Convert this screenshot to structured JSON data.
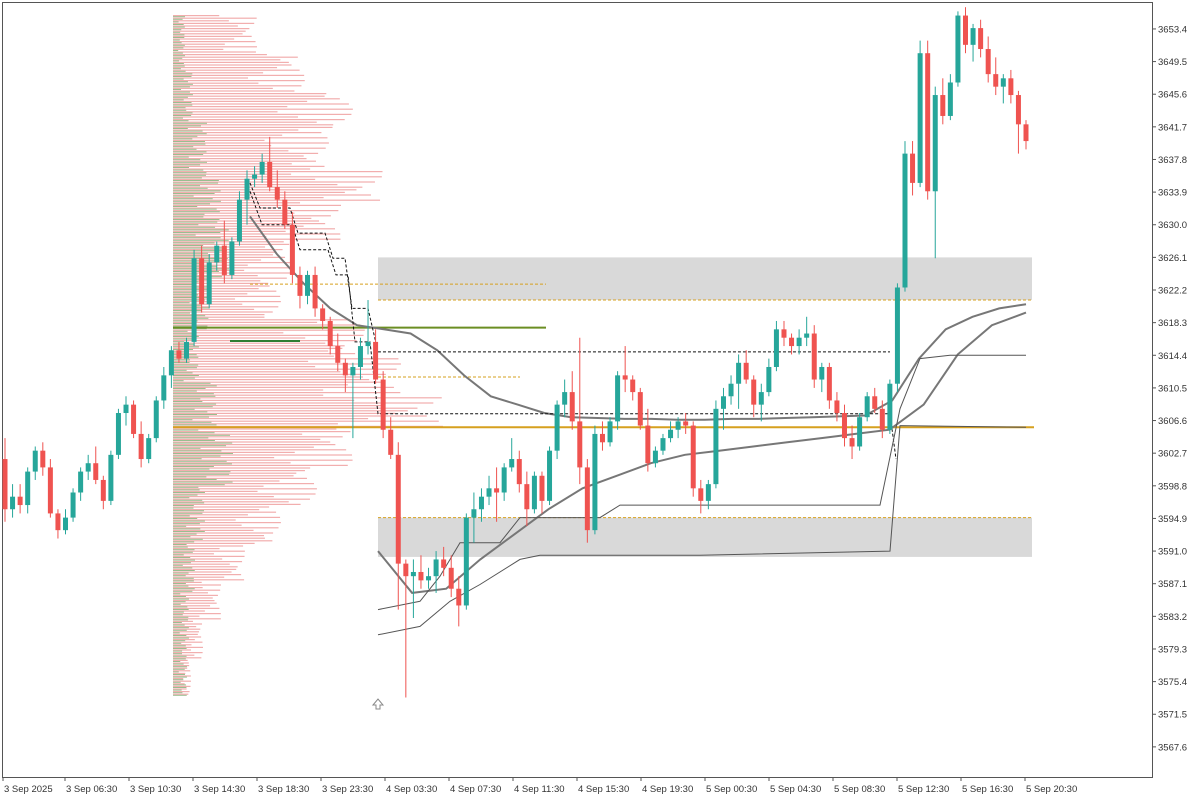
{
  "toolbar": {
    "icons": [
      "object-list-icon",
      "indicator-list-icon"
    ]
  },
  "colors": {
    "bull": "#26a69a",
    "bear": "#ef5350",
    "zone": "#d9d9d9",
    "avg_line": "#777777",
    "band_line": "#555555",
    "poc_line": "#d6a01f",
    "level_line": "#6b8e23",
    "profile_bull": "#7fae74",
    "profile_bear": "#f0a0a0"
  },
  "chart_data": {
    "type": "candlestick",
    "symbol_period": "",
    "y_ticks": [
      "3653.4",
      "3649.5",
      "3645.6",
      "3641.7",
      "3637.8",
      "3633.9",
      "3630.0",
      "3626.1",
      "3622.2",
      "3618.3",
      "3614.4",
      "3610.5",
      "3606.6",
      "3602.7",
      "3598.8",
      "3594.9",
      "3591.0",
      "3587.1",
      "3583.2",
      "3579.3",
      "3575.4",
      "3571.5",
      "3567.6"
    ],
    "x_ticks": [
      "3 Sep 2025",
      "3 Sep 06:30",
      "3 Sep 10:30",
      "3 Sep 14:30",
      "3 Sep 18:30",
      "3 Sep 23:30",
      "4 Sep 03:30",
      "4 Sep 07:30",
      "4 Sep 11:30",
      "4 Sep 15:30",
      "4 Sep 19:30",
      "5 Sep 00:30",
      "5 Sep 04:30",
      "5 Sep 08:30",
      "5 Sep 12:30",
      "5 Sep 16:30",
      "5 Sep 20:30"
    ],
    "ylim": [
      3564.0,
      3656.5
    ],
    "candles_ohlc": [
      [
        3602.0,
        3604.5,
        3594.5,
        3596.0
      ],
      [
        3596.0,
        3599.0,
        3595.0,
        3597.5
      ],
      [
        3597.5,
        3599.0,
        3595.5,
        3596.5
      ],
      [
        3596.5,
        3601.0,
        3595.5,
        3600.5
      ],
      [
        3600.5,
        3603.5,
        3599.5,
        3603.0
      ],
      [
        3603.0,
        3604.0,
        3600.0,
        3601.0
      ],
      [
        3601.0,
        3602.0,
        3595.0,
        3595.5
      ],
      [
        3595.5,
        3596.0,
        3592.5,
        3593.5
      ],
      [
        3593.5,
        3596.0,
        3593.0,
        3595.0
      ],
      [
        3595.0,
        3598.5,
        3594.5,
        3598.0
      ],
      [
        3598.0,
        3601.0,
        3597.0,
        3600.5
      ],
      [
        3600.5,
        3602.5,
        3599.5,
        3601.5
      ],
      [
        3601.5,
        3603.5,
        3599.0,
        3599.5
      ],
      [
        3599.5,
        3600.0,
        3596.0,
        3597.0
      ],
      [
        3597.0,
        3603.0,
        3596.5,
        3602.5
      ],
      [
        3602.5,
        3608.0,
        3602.0,
        3607.5
      ],
      [
        3607.5,
        3609.5,
        3606.0,
        3608.5
      ],
      [
        3608.5,
        3609.0,
        3604.5,
        3605.0
      ],
      [
        3605.0,
        3606.5,
        3601.0,
        3602.0
      ],
      [
        3602.0,
        3605.0,
        3601.5,
        3604.5
      ],
      [
        3604.5,
        3609.5,
        3604.0,
        3609.0
      ],
      [
        3609.0,
        3613.0,
        3608.0,
        3612.0
      ],
      [
        3612.0,
        3615.5,
        3610.5,
        3615.0
      ],
      [
        3615.0,
        3616.0,
        3613.5,
        3614.0
      ],
      [
        3614.0,
        3616.5,
        3613.5,
        3616.0
      ],
      [
        3616.0,
        3627.0,
        3615.5,
        3626.0
      ],
      [
        3626.0,
        3627.5,
        3619.5,
        3620.5
      ],
      [
        3620.5,
        3626.5,
        3620.0,
        3625.5
      ],
      [
        3625.5,
        3628.0,
        3624.5,
        3627.5
      ],
      [
        3627.5,
        3630.5,
        3623.0,
        3624.0
      ],
      [
        3624.0,
        3628.5,
        3623.5,
        3628.0
      ],
      [
        3628.0,
        3634.0,
        3627.5,
        3633.0
      ],
      [
        3633.0,
        3636.5,
        3630.0,
        3635.5
      ],
      [
        3635.5,
        3637.0,
        3634.5,
        3636.0
      ],
      [
        3636.0,
        3638.5,
        3635.0,
        3637.5
      ],
      [
        3637.5,
        3640.5,
        3634.0,
        3634.5
      ],
      [
        3634.5,
        3636.5,
        3632.0,
        3633.0
      ],
      [
        3633.0,
        3634.0,
        3629.5,
        3630.0
      ],
      [
        3630.0,
        3631.5,
        3623.0,
        3624.0
      ],
      [
        3624.0,
        3625.0,
        3620.0,
        3621.5
      ],
      [
        3621.5,
        3624.5,
        3620.5,
        3624.0
      ],
      [
        3624.0,
        3625.0,
        3619.0,
        3620.0
      ],
      [
        3620.0,
        3620.5,
        3617.5,
        3618.5
      ],
      [
        3618.5,
        3619.0,
        3614.5,
        3615.5
      ],
      [
        3615.5,
        3617.0,
        3612.5,
        3613.5
      ],
      [
        3613.5,
        3614.0,
        3610.0,
        3612.0
      ],
      [
        3612.0,
        3613.5,
        3604.5,
        3613.0
      ],
      [
        3613.0,
        3616.5,
        3611.5,
        3615.5
      ],
      [
        3615.5,
        3621.0,
        3614.5,
        3616.0
      ],
      [
        3616.0,
        3617.5,
        3611.0,
        3611.5
      ],
      [
        3611.5,
        3612.5,
        3604.5,
        3605.5
      ],
      [
        3605.5,
        3607.0,
        3602.0,
        3602.5
      ],
      [
        3602.5,
        3604.0,
        3584.0,
        3589.5
      ],
      [
        3589.5,
        3590.0,
        3573.5,
        3588.0
      ],
      [
        3588.0,
        3590.0,
        3583.0,
        3588.5
      ],
      [
        3588.5,
        3590.5,
        3586.5,
        3587.5
      ],
      [
        3587.5,
        3589.0,
        3586.5,
        3588.0
      ],
      [
        3588.0,
        3591.0,
        3586.0,
        3590.0
      ],
      [
        3590.0,
        3591.5,
        3588.0,
        3589.0
      ],
      [
        3589.0,
        3590.5,
        3585.5,
        3586.5
      ],
      [
        3586.5,
        3588.0,
        3582.0,
        3584.5
      ],
      [
        3584.5,
        3595.5,
        3584.0,
        3595.0
      ],
      [
        3595.0,
        3598.0,
        3592.0,
        3596.0
      ],
      [
        3596.0,
        3598.5,
        3594.5,
        3597.5
      ],
      [
        3597.5,
        3600.0,
        3596.5,
        3598.5
      ],
      [
        3598.5,
        3601.0,
        3594.5,
        3598.0
      ],
      [
        3598.0,
        3601.5,
        3597.0,
        3601.0
      ],
      [
        3601.0,
        3604.5,
        3600.5,
        3602.0
      ],
      [
        3602.0,
        3603.0,
        3598.0,
        3599.0
      ],
      [
        3599.0,
        3600.5,
        3594.0,
        3596.0
      ],
      [
        3596.0,
        3600.5,
        3595.5,
        3600.0
      ],
      [
        3600.0,
        3600.5,
        3595.5,
        3597.0
      ],
      [
        3597.0,
        3603.5,
        3596.5,
        3603.0
      ],
      [
        3603.0,
        3609.0,
        3602.0,
        3608.5
      ],
      [
        3608.5,
        3611.5,
        3607.0,
        3610.0
      ],
      [
        3610.0,
        3612.5,
        3605.5,
        3606.5
      ],
      [
        3606.5,
        3616.5,
        3599.0,
        3601.0
      ],
      [
        3601.0,
        3602.0,
        3592.0,
        3593.5
      ],
      [
        3593.5,
        3606.0,
        3593.0,
        3605.0
      ],
      [
        3605.0,
        3606.5,
        3603.0,
        3604.0
      ],
      [
        3604.0,
        3607.0,
        3603.5,
        3606.5
      ],
      [
        3606.5,
        3612.5,
        3605.5,
        3612.0
      ],
      [
        3612.0,
        3615.5,
        3610.0,
        3611.5
      ],
      [
        3611.5,
        3612.0,
        3609.0,
        3610.0
      ],
      [
        3610.0,
        3610.5,
        3605.5,
        3606.0
      ],
      [
        3606.0,
        3608.0,
        3600.5,
        3601.5
      ],
      [
        3601.5,
        3603.5,
        3601.0,
        3603.0
      ],
      [
        3603.0,
        3605.0,
        3602.5,
        3604.5
      ],
      [
        3604.5,
        3606.5,
        3604.0,
        3605.5
      ],
      [
        3605.5,
        3607.0,
        3604.5,
        3606.5
      ],
      [
        3606.5,
        3607.5,
        3605.0,
        3606.0
      ],
      [
        3606.0,
        3606.5,
        3597.5,
        3598.5
      ],
      [
        3598.5,
        3599.5,
        3595.5,
        3597.0
      ],
      [
        3597.0,
        3599.5,
        3596.0,
        3599.0
      ],
      [
        3599.0,
        3609.0,
        3598.5,
        3608.0
      ],
      [
        3608.0,
        3610.5,
        3605.5,
        3609.5
      ],
      [
        3609.5,
        3612.0,
        3608.5,
        3611.0
      ],
      [
        3611.0,
        3614.5,
        3608.0,
        3613.5
      ],
      [
        3613.5,
        3615.0,
        3611.0,
        3611.5
      ],
      [
        3611.5,
        3612.0,
        3607.0,
        3608.5
      ],
      [
        3608.5,
        3611.0,
        3606.5,
        3610.0
      ],
      [
        3610.0,
        3614.0,
        3609.5,
        3613.0
      ],
      [
        3613.0,
        3618.5,
        3612.5,
        3617.5
      ],
      [
        3617.5,
        3618.5,
        3615.5,
        3616.5
      ],
      [
        3616.5,
        3617.0,
        3614.5,
        3615.5
      ],
      [
        3615.5,
        3617.5,
        3614.5,
        3616.5
      ],
      [
        3616.5,
        3619.0,
        3615.5,
        3617.0
      ],
      [
        3617.0,
        3618.0,
        3610.5,
        3611.5
      ],
      [
        3611.5,
        3613.5,
        3610.0,
        3613.0
      ],
      [
        3613.0,
        3613.5,
        3608.0,
        3609.0
      ],
      [
        3609.0,
        3610.0,
        3606.5,
        3607.5
      ],
      [
        3607.5,
        3608.5,
        3603.5,
        3604.5
      ],
      [
        3604.5,
        3606.0,
        3602.0,
        3603.5
      ],
      [
        3603.5,
        3607.5,
        3603.0,
        3607.0
      ],
      [
        3607.0,
        3610.0,
        3606.5,
        3609.5
      ],
      [
        3609.5,
        3610.5,
        3607.5,
        3608.0
      ],
      [
        3608.0,
        3609.0,
        3604.5,
        3605.5
      ],
      [
        3605.5,
        3611.5,
        3605.0,
        3611.0
      ],
      [
        3611.0,
        3623.0,
        3610.0,
        3622.5
      ],
      [
        3622.5,
        3640.0,
        3622.0,
        3638.5
      ],
      [
        3638.5,
        3640.0,
        3633.5,
        3635.0
      ],
      [
        3635.0,
        3652.0,
        3634.5,
        3650.5
      ],
      [
        3650.5,
        3652.0,
        3633.0,
        3634.0
      ],
      [
        3634.0,
        3646.5,
        3626.0,
        3645.5
      ],
      [
        3645.5,
        3647.5,
        3642.0,
        3643.0
      ],
      [
        3643.0,
        3648.0,
        3642.5,
        3647.0
      ],
      [
        3647.0,
        3655.5,
        3646.5,
        3655.0
      ],
      [
        3655.0,
        3656.0,
        3650.5,
        3651.5
      ],
      [
        3651.5,
        3654.0,
        3649.5,
        3653.5
      ],
      [
        3653.5,
        3654.5,
        3650.0,
        3651.0
      ],
      [
        3651.0,
        3652.5,
        3647.0,
        3648.0
      ],
      [
        3648.0,
        3650.0,
        3645.5,
        3646.5
      ],
      [
        3646.5,
        3648.0,
        3644.5,
        3647.5
      ],
      [
        3647.5,
        3648.5,
        3644.5,
        3645.5
      ],
      [
        3645.5,
        3646.0,
        3638.5,
        3642.0
      ],
      [
        3642.0,
        3642.5,
        3639.0,
        3640.0
      ]
    ],
    "zones": [
      {
        "top": 3626.1,
        "bottom": 3621.0
      },
      {
        "top": 3595.0,
        "bottom": 3590.3
      }
    ],
    "levels": {
      "poc": 3605.8,
      "level_a": 3617.7,
      "level_b": 3616.1,
      "dotted_a": 3622.9,
      "dotted_b": 3621.0,
      "dotted_c": 3611.8,
      "dotted_d": 3595.0
    },
    "ma_lines": {
      "vwap_a": [
        3631.0,
        3626.5,
        3623.0,
        3620.0,
        3618.0,
        3617.5,
        3617.0,
        3615.0,
        3612.0,
        3609.5,
        3608.5,
        3607.5,
        3607.0,
        3606.9,
        3606.8,
        3606.8,
        3606.7,
        3606.7,
        3606.8,
        3606.8,
        3606.9,
        3607.0,
        3607.1,
        3607.2,
        3609.0,
        3614.0,
        3617.5,
        3619.0,
        3620.0,
        3620.5
      ],
      "vwap_b": [
        3591.0,
        3586.0,
        3586.5,
        3590.0,
        3593.0,
        3596.0,
        3598.5,
        3600.0,
        3601.5,
        3602.5,
        3603.0,
        3603.5,
        3604.0,
        3604.5,
        3605.0,
        3605.5,
        3608.5,
        3614.5,
        3618.0,
        3619.5
      ]
    },
    "profile": {
      "bull_bins": [
        3.0,
        5.0,
        8.5,
        12.0,
        14.0,
        9.0,
        6.5,
        11.0,
        15.0,
        8.0,
        5.5,
        4.0,
        3.5
      ],
      "bear_bins": [
        14.0,
        22.0,
        30.0,
        26.0,
        35.0,
        28.0,
        20.0,
        18.0,
        32.0,
        38.0,
        45.0,
        30.0,
        24.0,
        18.0,
        12.0,
        8.0,
        5.0,
        3.0
      ]
    }
  }
}
